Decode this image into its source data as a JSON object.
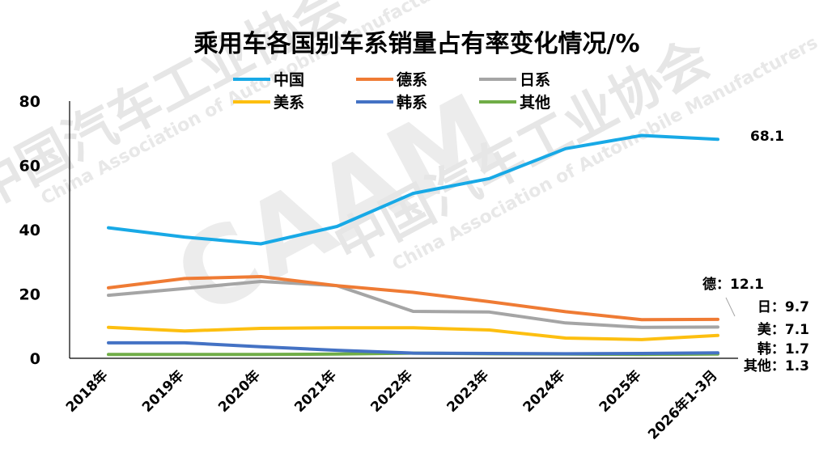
{
  "chart_data": {
    "type": "line",
    "title": "乘用车各国别车系销量占有率变化情况/%",
    "categories": [
      "2018年",
      "2019年",
      "2020年",
      "2021年",
      "2022年",
      "2023年",
      "2024年",
      "2025年",
      "2026年1-3月"
    ],
    "ylim": [
      0,
      80
    ],
    "yticks": [
      0,
      20,
      40,
      60,
      80
    ],
    "xlabel": "",
    "ylabel": "",
    "grid": false,
    "legend_position": "top",
    "series": [
      {
        "name": "中国",
        "color": "#18a9e6",
        "values": [
          40.6,
          37.7,
          35.6,
          41.0,
          51.3,
          55.9,
          65.2,
          69.3,
          68.1
        ],
        "end_label": "68.1"
      },
      {
        "name": "德系",
        "color": "#ef7b34",
        "values": [
          21.9,
          24.8,
          25.4,
          22.6,
          20.5,
          17.6,
          14.5,
          12.0,
          12.1
        ],
        "end_label": "德：12.1"
      },
      {
        "name": "日系",
        "color": "#a5a5a5",
        "values": [
          19.6,
          21.7,
          23.9,
          22.6,
          14.6,
          14.4,
          11.0,
          9.6,
          9.7
        ],
        "end_label": "日：9.7"
      },
      {
        "name": "美系",
        "color": "#fdbf10",
        "values": [
          9.6,
          8.5,
          9.3,
          9.5,
          9.5,
          8.8,
          6.3,
          5.8,
          7.1
        ],
        "end_label": "美：7.1"
      },
      {
        "name": "韩系",
        "color": "#4472c4",
        "values": [
          4.8,
          4.8,
          3.6,
          2.5,
          1.6,
          1.5,
          1.4,
          1.5,
          1.7
        ],
        "end_label": "韩：1.7"
      },
      {
        "name": "其他",
        "color": "#70ad47",
        "values": [
          1.2,
          1.2,
          1.2,
          1.3,
          1.6,
          1.4,
          1.3,
          1.2,
          1.3
        ],
        "end_label": "其他：1.3"
      }
    ]
  },
  "watermark": {
    "org_cn": "中国汽车工业协会",
    "org_en": "China Association of Automobile Manufacturers",
    "logo": "CAAM"
  }
}
